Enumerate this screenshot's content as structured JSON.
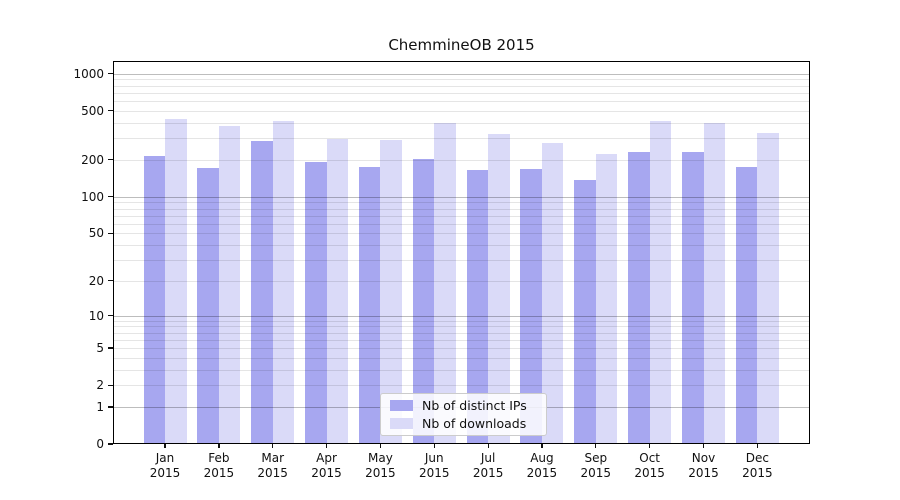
{
  "title": "ChemmineOB 2015",
  "chart_data": {
    "type": "bar",
    "title": "ChemmineOB 2015",
    "categories": [
      "Jan",
      "Feb",
      "Mar",
      "Apr",
      "May",
      "Jun",
      "Jul",
      "Aug",
      "Sep",
      "Oct",
      "Nov",
      "Dec"
    ],
    "category_year": "2015",
    "series": [
      {
        "name": "Nb of distinct IPs",
        "color": "#a7a7f0",
        "values": [
          215,
          172,
          284,
          192,
          174,
          204,
          166,
          169,
          136,
          230,
          232,
          174
        ]
      },
      {
        "name": "Nb of downloads",
        "color": "#dadaf8",
        "values": [
          427,
          375,
          411,
          293,
          289,
          399,
          327,
          275,
          225,
          414,
          402,
          331
        ]
      }
    ],
    "xlabel": "",
    "ylabel": "",
    "yscale": "log1p",
    "ylim": [
      0,
      1258
    ],
    "yticks": [
      0,
      1,
      2,
      5,
      10,
      20,
      50,
      100,
      200,
      500,
      1000
    ],
    "grid": {
      "on": true,
      "major_lines": [
        1,
        10,
        100,
        1000
      ],
      "minor_lines": [
        2,
        3,
        4,
        5,
        6,
        7,
        8,
        9,
        20,
        30,
        40,
        50,
        60,
        70,
        80,
        90,
        200,
        300,
        400,
        500,
        600,
        700,
        800,
        900
      ]
    },
    "legend": {
      "position": "lower-center"
    }
  },
  "colors": {
    "bar_distinct_ips": "#a7a7f0",
    "bar_downloads": "#dadaf8",
    "grid_minor": "rgba(0,0,0,0.10)",
    "grid_major": "rgba(0,0,0,0.26)",
    "spine": "#000000",
    "text": "#111111",
    "legend_border": "#cccccc"
  }
}
